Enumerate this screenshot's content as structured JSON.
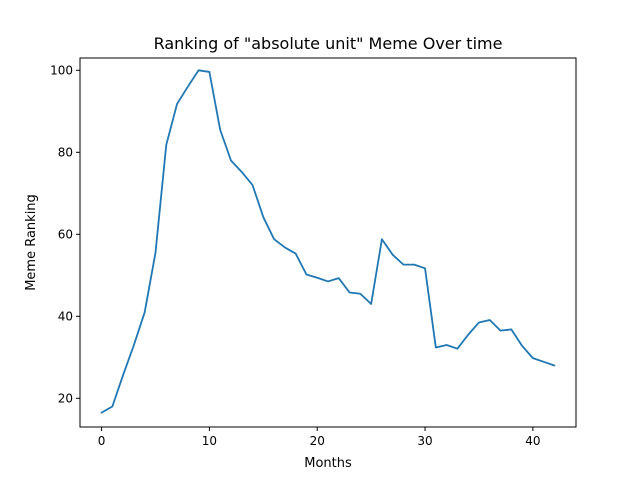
{
  "chart_data": {
    "type": "line",
    "title": "Ranking of \"absolute unit\" Meme Over time",
    "xlabel": "Months",
    "ylabel": "Meme Ranking",
    "xlim": [
      -2,
      44
    ],
    "ylim": [
      13,
      103
    ],
    "xticks": [
      0,
      10,
      20,
      30,
      40
    ],
    "yticks": [
      20,
      40,
      60,
      80,
      100
    ],
    "grid": false,
    "color": "#1f77b4",
    "series": [
      {
        "x": [
          0,
          1,
          2,
          3,
          4,
          5,
          6,
          7,
          8,
          9,
          10,
          11,
          12,
          13,
          14,
          15,
          16,
          17,
          18,
          19,
          20,
          21,
          22,
          23,
          24,
          25,
          26,
          27,
          28,
          29,
          30,
          31,
          32,
          33,
          34,
          35,
          36,
          37,
          38,
          39,
          40,
          41,
          42
        ],
        "values": [
          16.5,
          18,
          25.7,
          33,
          41,
          55.5,
          81.8,
          91.8,
          96,
          100,
          99.6,
          85.5,
          78,
          75.2,
          72,
          64.2,
          58.8,
          56.8,
          55.3,
          50.2,
          49.4,
          48.5,
          49.3,
          45.8,
          45.5,
          43,
          58.8,
          55,
          52.6,
          52.6,
          51.7,
          32.4,
          33,
          32.1,
          35.5,
          38.5,
          39.1,
          36.5,
          36.8,
          32.8,
          29.8,
          28.9,
          28
        ]
      }
    ]
  }
}
